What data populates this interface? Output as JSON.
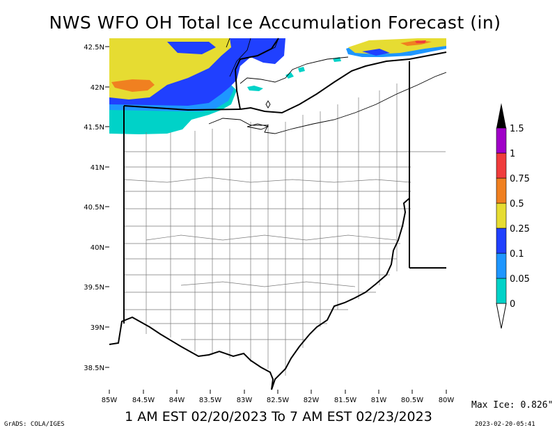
{
  "title": "NWS WFO OH Total Ice Accumulation Forecast (in)",
  "subtitle": "1 AM EST 02/20/2023 To 7 AM EST 02/23/2023",
  "max_ice": "Max Ice: 0.826\"",
  "credit": "GrADS: COLA/IGES",
  "timestamp": "2023-02-20-05:41",
  "axes": {
    "lat_labels": [
      "42.5N",
      "42N",
      "41.5N",
      "41N",
      "40.5N",
      "40N",
      "39.5N",
      "39N",
      "38.5N"
    ],
    "lat_values": [
      42.5,
      42.0,
      41.5,
      41.0,
      40.5,
      40.0,
      39.5,
      39.0,
      38.5
    ],
    "lon_labels": [
      "85W",
      "84.5W",
      "84W",
      "83.5W",
      "83W",
      "82.5W",
      "82W",
      "81.5W",
      "81W",
      "80.5W",
      "80W"
    ],
    "lon_values": [
      -85.0,
      -84.5,
      -84.0,
      -83.5,
      -83.0,
      -82.5,
      -82.0,
      -81.5,
      -81.0,
      -80.5,
      -80.0
    ]
  },
  "legend": {
    "labels": [
      "0",
      "0.05",
      "0.1",
      "0.25",
      "0.5",
      "0.75",
      "1",
      "1.5"
    ],
    "colors": [
      "#00d2c8",
      "#1e96ff",
      "#2040ff",
      "#e6dc32",
      "#f08020",
      "#f03c3c",
      "#a000c8",
      "#000000"
    ]
  },
  "colors": {
    "teal": "#00d2c8",
    "light_blue": "#1e96ff",
    "blue": "#2040ff",
    "yellow": "#e6dc32",
    "orange": "#f08020",
    "red": "#f03c3c"
  }
}
